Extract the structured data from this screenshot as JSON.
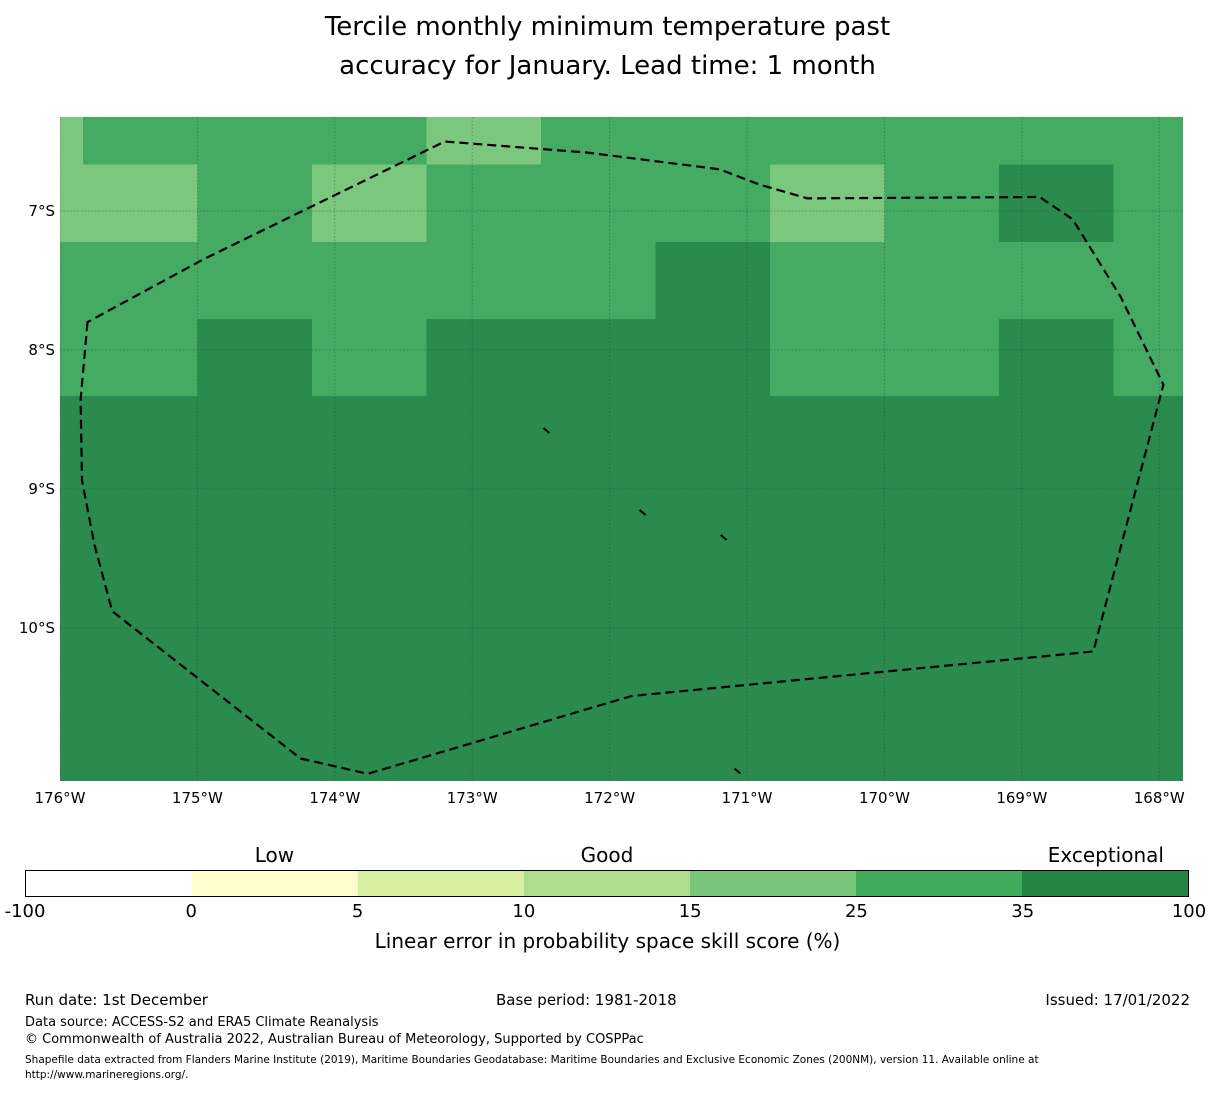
{
  "title": {
    "line1": "Tercile monthly minimum temperature past",
    "line2": "accuracy for January. Lead time: 1 month"
  },
  "chart_data": {
    "type": "heatmap",
    "title": "Tercile monthly minimum temperature past accuracy for January. Lead time: 1 month",
    "map": {
      "lon_range_degW": [
        176.0,
        167.827
      ],
      "lat_range_degS": [
        6.324,
        11.102
      ],
      "grid_on": true,
      "lon_ticks": [
        {
          "value": 176,
          "label": "176°W"
        },
        {
          "value": 175,
          "label": "175°W"
        },
        {
          "value": 174,
          "label": "174°W"
        },
        {
          "value": 173,
          "label": "173°W"
        },
        {
          "value": 172,
          "label": "172°W"
        },
        {
          "value": 171,
          "label": "171°W"
        },
        {
          "value": 170,
          "label": "170°W"
        },
        {
          "value": 169,
          "label": "169°W"
        },
        {
          "value": 168,
          "label": "168°W"
        }
      ],
      "lat_ticks": [
        {
          "value": 7,
          "label": "7°S"
        },
        {
          "value": 8,
          "label": "8°S"
        },
        {
          "value": 9,
          "label": "9°S"
        },
        {
          "value": 10,
          "label": "10°S"
        }
      ]
    },
    "cells": {
      "col_bounds_degW": [
        176.0,
        175.833,
        175.0,
        174.167,
        173.333,
        172.5,
        171.667,
        170.833,
        170.0,
        169.167,
        168.333,
        167.827
      ],
      "row_bounds_degS": [
        6.324,
        6.667,
        7.222,
        7.778,
        8.333,
        8.889,
        9.444,
        10.0,
        10.556,
        11.102
      ],
      "legend_of_codes": {
        "L": "skill 15-25%",
        "M": "skill 25-35%",
        "D": "skill 35-100%"
      },
      "palette": {
        "L": "#7bc77e",
        "M": "#45aa62",
        "D": "#2b8a4d"
      },
      "rows": [
        [
          "L",
          "M",
          "M",
          "M",
          "L",
          "M",
          "M",
          "M",
          "M",
          "M",
          "M"
        ],
        [
          "L",
          "L",
          "M",
          "L",
          "M",
          "M",
          "M",
          "L",
          "M",
          "D",
          "M"
        ],
        [
          "M",
          "M",
          "M",
          "M",
          "M",
          "M",
          "D",
          "M",
          "M",
          "M",
          "M"
        ],
        [
          "M",
          "M",
          "D",
          "M",
          "D",
          "D",
          "D",
          "M",
          "M",
          "D",
          "M"
        ],
        [
          "D",
          "D",
          "D",
          "D",
          "D",
          "D",
          "D",
          "D",
          "D",
          "D",
          "D"
        ],
        [
          "D",
          "D",
          "D",
          "D",
          "D",
          "D",
          "D",
          "D",
          "D",
          "D",
          "D"
        ],
        [
          "D",
          "D",
          "D",
          "D",
          "D",
          "D",
          "D",
          "D",
          "D",
          "D",
          "D"
        ],
        [
          "D",
          "D",
          "D",
          "D",
          "D",
          "D",
          "D",
          "D",
          "D",
          "D",
          "D"
        ],
        [
          "D",
          "D",
          "D",
          "D",
          "D",
          "D",
          "D",
          "D",
          "D",
          "D",
          "D"
        ]
      ]
    },
    "eez_boundary_degW_degS": [
      [
        175.8,
        7.8
      ],
      [
        175.85,
        8.36
      ],
      [
        175.84,
        8.94
      ],
      [
        175.75,
        9.4
      ],
      [
        175.62,
        9.88
      ],
      [
        174.25,
        10.94
      ],
      [
        173.76,
        11.05
      ],
      [
        171.84,
        10.49
      ],
      [
        168.48,
        10.17
      ],
      [
        168.19,
        9.08
      ],
      [
        167.97,
        8.25
      ],
      [
        168.28,
        7.62
      ],
      [
        168.63,
        7.06
      ],
      [
        168.87,
        6.9
      ],
      [
        170.56,
        6.91
      ],
      [
        170.91,
        6.81
      ],
      [
        171.2,
        6.7
      ],
      [
        172.16,
        6.58
      ],
      [
        173.2,
        6.5
      ],
      [
        174.96,
        7.35
      ]
    ],
    "island_marks_degW_degS": [
      [
        172.46,
        8.58
      ],
      [
        171.76,
        9.17
      ],
      [
        171.17,
        9.35
      ],
      [
        171.07,
        11.03
      ]
    ],
    "gridline_color": "#3a3a3a"
  },
  "colorbar": {
    "thresholds": [
      "-100",
      "0",
      "5",
      "10",
      "15",
      "25",
      "35",
      "100"
    ],
    "segment_colors": [
      "#ffffff",
      "#ffffcc",
      "#d9f0a3",
      "#addd8e",
      "#78c679",
      "#41ab5d",
      "#238443"
    ],
    "category_labels": [
      {
        "label": "Low",
        "segment": 1
      },
      {
        "label": "Good",
        "segment": 3
      },
      {
        "label": "Exceptional",
        "segment": 6
      }
    ],
    "caption": "Linear error in probability space skill score (%)"
  },
  "footer": {
    "run_date": "Run date: 1st December",
    "base_period": "Base period: 1981-2018",
    "issued": "Issued: 17/01/2022",
    "data_source": "Data source: ACCESS-S2 and ERA5 Climate Reanalysis",
    "copyright": "© Commonwealth of Australia 2022, Australian Bureau of Meteorology, Supported by COSPPac",
    "shapefile_note": "Shapefile data extracted from Flanders Marine Institute (2019), Maritime Boundaries Geodatabase: Maritime Boundaries and Exclusive Economic Zones (200NM), version 11. Available online at http://www.marineregions.org/."
  }
}
